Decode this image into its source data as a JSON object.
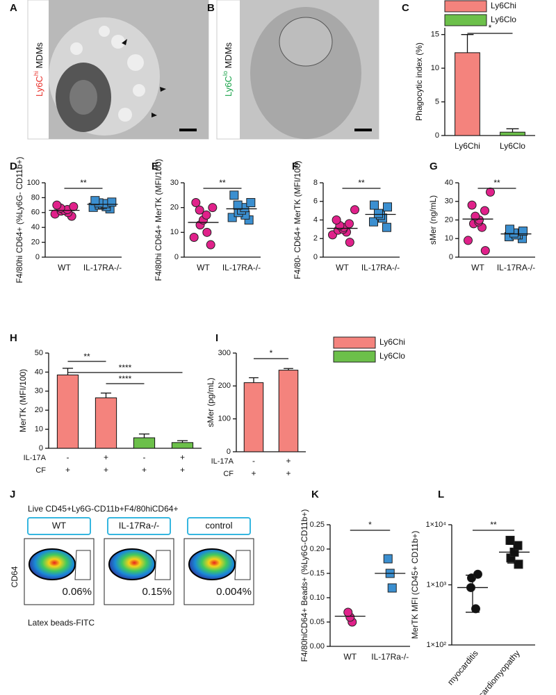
{
  "panels": [
    "A",
    "B",
    "C",
    "D",
    "E",
    "F",
    "G",
    "H",
    "I",
    "J",
    "K",
    "L"
  ],
  "micrographs": [
    {
      "label": [
        "Ly6C",
        "hi",
        " MDMs"
      ],
      "color": "#e8302a"
    },
    {
      "label": [
        "Ly6C",
        "lo",
        " MDMs"
      ],
      "color": "#1aa34a"
    }
  ],
  "flow": {
    "title": "Live CD45+Ly6G-CD11b+F4/80hiCD64+",
    "y_label": "CD64",
    "x_label": "Latex beads-FITC",
    "plots": [
      {
        "name": "WT",
        "percent": "0.06%"
      },
      {
        "name": "IL-17Ra-/-",
        "percent": "0.15%"
      },
      {
        "name": "control",
        "percent": "0.004%"
      }
    ]
  },
  "chart_data": [
    {
      "type": "bar",
      "y_label": "Phagocytic index (%)",
      "categories": [
        "Ly6Chi",
        "Ly6Clo"
      ],
      "values": [
        12.3,
        0.5
      ],
      "errors": [
        2.7,
        0.5
      ],
      "colors": [
        "#f4837d",
        "#6cc04a"
      ],
      "ylim": [
        0,
        16
      ],
      "yticks": [
        0,
        5,
        10,
        15
      ],
      "significance": "*",
      "legend": [
        {
          "name": "Ly6Chi",
          "color": "#f4837d"
        },
        {
          "name": "Ly6Clo",
          "color": "#6cc04a"
        }
      ]
    },
    {
      "type": "dot",
      "y_label": "F4/80hi CD64+ (%Ly6G- CD11b+)",
      "categories": [
        "WT",
        "IL-17RA-/-"
      ],
      "values": [
        [
          55,
          58,
          60,
          62,
          63,
          64,
          66,
          68,
          70
        ],
        [
          65,
          67,
          68,
          70,
          71,
          72,
          73,
          74,
          76
        ]
      ],
      "means": [
        63,
        71
      ],
      "colors": [
        "#e0218a",
        "#3b8fd0"
      ],
      "markers": [
        "circle",
        "square"
      ],
      "ylim": [
        0,
        100
      ],
      "yticks": [
        0,
        20,
        40,
        60,
        80,
        100
      ],
      "significance": "**"
    },
    {
      "type": "dot",
      "y_label": "F4/80hi CD64+ MerTK (MFI/100)",
      "categories": [
        "WT",
        "IL-17RA-/-"
      ],
      "values": [
        [
          5,
          8,
          10,
          13,
          15,
          17,
          19,
          20,
          22
        ],
        [
          15,
          16,
          17,
          18,
          19,
          20,
          21,
          22,
          25
        ]
      ],
      "means": [
        14,
        19.5
      ],
      "colors": [
        "#e0218a",
        "#3b8fd0"
      ],
      "markers": [
        "circle",
        "square"
      ],
      "ylim": [
        0,
        30
      ],
      "yticks": [
        0,
        10,
        20,
        30
      ],
      "significance": "**"
    },
    {
      "type": "dot",
      "y_label": "F4/80- CD64+ MerTK (MFI/100)",
      "categories": [
        "WT",
        "IL-17RA-/-"
      ],
      "values": [
        [
          1.6,
          2.4,
          2.7,
          2.9,
          3.0,
          3.2,
          3.4,
          3.6,
          4.0,
          5.1
        ],
        [
          3.2,
          3.8,
          4.2,
          4.5,
          4.7,
          5.4,
          5.6
        ]
      ],
      "means": [
        3.1,
        4.6
      ],
      "colors": [
        "#e0218a",
        "#3b8fd0"
      ],
      "markers": [
        "circle",
        "square"
      ],
      "ylim": [
        0,
        8
      ],
      "yticks": [
        0,
        2,
        4,
        6,
        8
      ],
      "significance": "**"
    },
    {
      "type": "dot",
      "y_label": "sMer (ng/mL)",
      "categories": [
        "WT",
        "IL-17RA-/-"
      ],
      "values": [
        [
          3.5,
          9,
          16,
          18,
          19,
          20,
          22,
          25,
          28,
          35
        ],
        [
          10,
          11,
          12,
          12,
          13,
          14,
          15
        ]
      ],
      "means": [
        20.5,
        12.5
      ],
      "colors": [
        "#e0218a",
        "#3b8fd0"
      ],
      "markers": [
        "circle",
        "square"
      ],
      "ylim": [
        0,
        40
      ],
      "yticks": [
        0,
        10,
        20,
        30,
        40
      ],
      "significance": "**"
    },
    {
      "type": "bar",
      "y_label": "MerTK (MFI/100)",
      "values": [
        38.5,
        26.5,
        5.5,
        3
      ],
      "errors": [
        3.5,
        2.5,
        2,
        1
      ],
      "colors": [
        "#f4837d",
        "#f4837d",
        "#6cc04a",
        "#6cc04a"
      ],
      "ylim": [
        0,
        50
      ],
      "yticks": [
        0,
        10,
        20,
        30,
        40,
        50
      ],
      "significance": [
        {
          "bars": [
            0,
            1
          ],
          "label": "**"
        },
        {
          "bars": [
            0,
            3
          ],
          "label": "****"
        },
        {
          "bars": [
            1,
            2
          ],
          "label": "****"
        }
      ],
      "conditions": [
        {
          "name": "IL-17A",
          "values": [
            "-",
            "+",
            "-",
            "+"
          ]
        },
        {
          "name": "CF",
          "values": [
            "+",
            "+",
            "+",
            "+"
          ]
        }
      ],
      "legend": [
        {
          "name": "Ly6Chi",
          "color": "#f4837d"
        },
        {
          "name": "Ly6Clo",
          "color": "#6cc04a"
        }
      ]
    },
    {
      "type": "bar",
      "y_label": "sMer (pg/mL)",
      "values": [
        210,
        248
      ],
      "errors": [
        15,
        5
      ],
      "colors": [
        "#f4837d",
        "#f4837d"
      ],
      "ylim": [
        0,
        300
      ],
      "yticks": [
        0,
        100,
        200,
        300
      ],
      "significance": "*",
      "conditions": [
        {
          "name": "IL-17A",
          "values": [
            "-",
            "+"
          ]
        },
        {
          "name": "CF",
          "values": [
            "+",
            "+"
          ]
        }
      ]
    },
    {
      "type": "dot",
      "y_label": "F4/80hiCD64+ Beads+ (%Ly6G-CD11b+)",
      "categories": [
        "WT",
        "IL-17Ra-/-"
      ],
      "values": [
        [
          0.05,
          0.06,
          0.07
        ],
        [
          0.12,
          0.15,
          0.18
        ]
      ],
      "means": [
        0.062,
        0.15
      ],
      "colors": [
        "#e0218a",
        "#3b8fd0"
      ],
      "markers": [
        "circle",
        "square"
      ],
      "ylim": [
        0,
        0.25
      ],
      "yticks": [
        {
          "value": 0,
          "label": "0.00"
        },
        {
          "value": 0.05,
          "label": "0.05"
        },
        {
          "value": 0.1,
          "label": "0.10"
        },
        {
          "value": 0.15,
          "label": "0.15"
        },
        {
          "value": 0.2,
          "label": "0.20"
        },
        {
          "value": 0.25,
          "label": "0.25"
        }
      ],
      "significance": "*"
    },
    {
      "type": "dot",
      "y_label": "MerTK MFI (CD45+ CD11b+)",
      "categories": [
        "myocarditis",
        "ischemic cardiomyopathy"
      ],
      "values": [
        [
          400,
          900,
          1300,
          1500
        ],
        [
          2200,
          2800,
          3500,
          4500,
          5500
        ]
      ],
      "means": [
        900,
        3500
      ],
      "errors": [
        550,
        1200
      ],
      "colors": [
        "#111111",
        "#111111"
      ],
      "markers": [
        "circle",
        "square"
      ],
      "log_scale": true,
      "ylim": [
        100,
        10000
      ],
      "yticks": [
        {
          "value": 100,
          "label": "1×10²"
        },
        {
          "value": 1000,
          "label": "1×10³"
        },
        {
          "value": 10000,
          "label": "1×10⁴"
        }
      ],
      "significance": "**"
    }
  ]
}
